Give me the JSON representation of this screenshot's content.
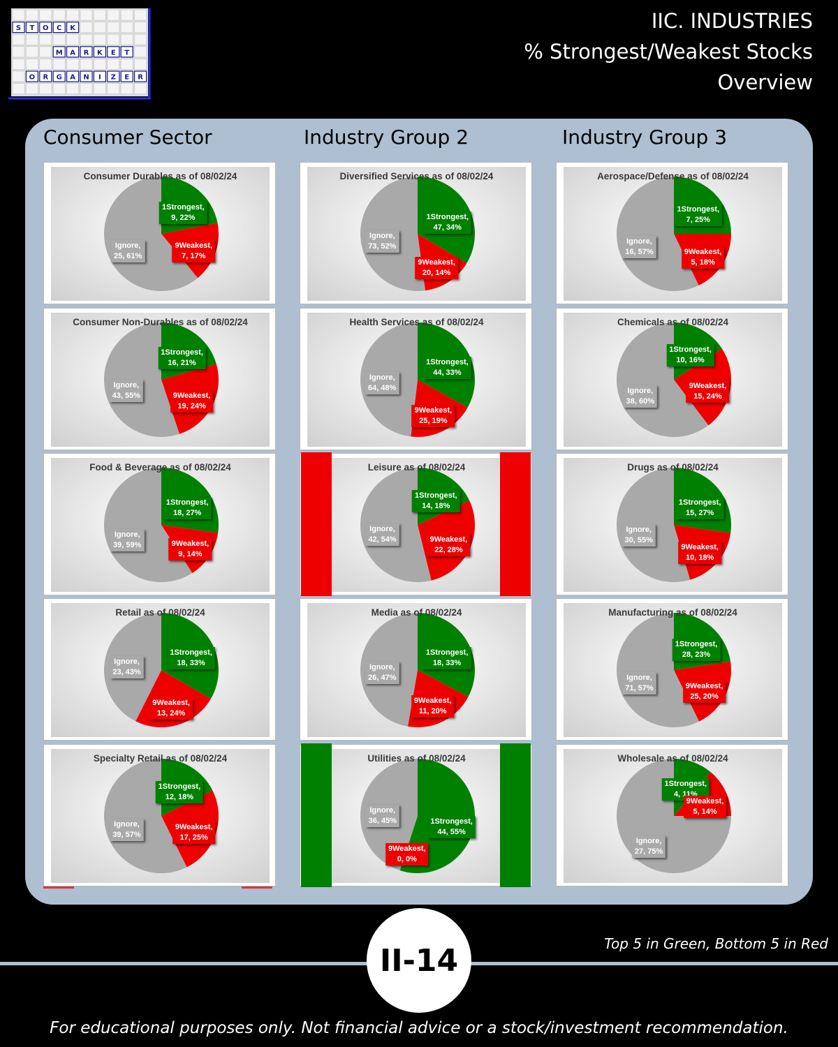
{
  "header": {
    "title_lines": [
      "IIC. INDUSTRIES",
      "% Strongest/Weakest Stocks",
      "Overview"
    ]
  },
  "logo": {
    "words": [
      "STOCK",
      "MARKET",
      "ORGANIZER"
    ]
  },
  "columns": [
    "Consumer Sector",
    "Industry Group 2",
    "Industry Group 3"
  ],
  "footer": {
    "note": "Top 5 in Green, Bottom 5 in Red",
    "page_number": "II-14",
    "disclaimer": "For educational purposes only. Not financial advice or a stock/investment recommendation."
  },
  "colors": {
    "strongest": "#008000",
    "weakest": "#ee0000",
    "ignore": "#a9a9a9",
    "panel": "#aebfd2"
  },
  "chart_data": [
    {
      "type": "pie",
      "title": "Consumer Durables as of 08/02/24",
      "highlight": "none",
      "slices": [
        {
          "name": "1Strongest",
          "value": 9,
          "pct": "22%"
        },
        {
          "name": "9Weakest",
          "value": 7,
          "pct": "17%"
        },
        {
          "name": "Ignore",
          "value": 25,
          "pct": "61%"
        }
      ]
    },
    {
      "type": "pie",
      "title": "Diversified Services as of 08/02/24",
      "highlight": "none",
      "slices": [
        {
          "name": "1Strongest",
          "value": 47,
          "pct": "34%"
        },
        {
          "name": "9Weakest",
          "value": 20,
          "pct": "14%"
        },
        {
          "name": "Ignore",
          "value": 73,
          "pct": "52%"
        }
      ]
    },
    {
      "type": "pie",
      "title": "Aerospace/Defense as of 08/02/24",
      "highlight": "none",
      "slices": [
        {
          "name": "1Strongest",
          "value": 7,
          "pct": "25%"
        },
        {
          "name": "9Weakest",
          "value": 5,
          "pct": "18%"
        },
        {
          "name": "Ignore",
          "value": 16,
          "pct": "57%"
        }
      ]
    },
    {
      "type": "pie",
      "title": "Consumer  Non-Durables  as of 08/02/24",
      "highlight": "none",
      "slices": [
        {
          "name": "1Strongest",
          "value": 16,
          "pct": "21%"
        },
        {
          "name": "9Weakest",
          "value": 19,
          "pct": "24%"
        },
        {
          "name": "Ignore",
          "value": 43,
          "pct": "55%"
        }
      ]
    },
    {
      "type": "pie",
      "title": "Health Services as of 08/02/24",
      "highlight": "none",
      "slices": [
        {
          "name": "1Strongest",
          "value": 44,
          "pct": "33%"
        },
        {
          "name": "9Weakest",
          "value": 25,
          "pct": "19%"
        },
        {
          "name": "Ignore",
          "value": 64,
          "pct": "48%"
        }
      ]
    },
    {
      "type": "pie",
      "title": "Chemicals as of 08/02/24",
      "highlight": "none",
      "slices": [
        {
          "name": "1Strongest",
          "value": 10,
          "pct": "16%"
        },
        {
          "name": "9Weakest",
          "value": 15,
          "pct": "24%"
        },
        {
          "name": "Ignore",
          "value": 38,
          "pct": "60%"
        }
      ]
    },
    {
      "type": "pie",
      "title": "Food & Beverage as of 08/02/24",
      "highlight": "none",
      "slices": [
        {
          "name": "1Strongest",
          "value": 18,
          "pct": "27%"
        },
        {
          "name": "9Weakest",
          "value": 9,
          "pct": "14%"
        },
        {
          "name": "Ignore",
          "value": 39,
          "pct": "59%"
        }
      ]
    },
    {
      "type": "pie",
      "title": "Leisure as of 08/02/24",
      "highlight": "red",
      "slices": [
        {
          "name": "1Strongest",
          "value": 14,
          "pct": "18%"
        },
        {
          "name": "9Weakest",
          "value": 22,
          "pct": "28%"
        },
        {
          "name": "Ignore",
          "value": 42,
          "pct": "54%"
        }
      ]
    },
    {
      "type": "pie",
      "title": "Drugs as of 08/02/24",
      "highlight": "none",
      "slices": [
        {
          "name": "1Strongest",
          "value": 15,
          "pct": "27%"
        },
        {
          "name": "9Weakest",
          "value": 10,
          "pct": "18%"
        },
        {
          "name": "Ignore",
          "value": 30,
          "pct": "55%"
        }
      ]
    },
    {
      "type": "pie",
      "title": "Retail as of 08/02/24",
      "highlight": "none",
      "slices": [
        {
          "name": "1Strongest",
          "value": 18,
          "pct": "33%"
        },
        {
          "name": "9Weakest",
          "value": 13,
          "pct": "24%"
        },
        {
          "name": "Ignore",
          "value": 23,
          "pct": "43%"
        }
      ]
    },
    {
      "type": "pie",
      "title": "Media as of 08/02/24",
      "highlight": "none",
      "slices": [
        {
          "name": "1Strongest",
          "value": 18,
          "pct": "33%"
        },
        {
          "name": "9Weakest",
          "value": 11,
          "pct": "20%"
        },
        {
          "name": "Ignore",
          "value": 26,
          "pct": "47%"
        }
      ]
    },
    {
      "type": "pie",
      "title": "Manufacturing as of 08/02/24",
      "highlight": "none",
      "slices": [
        {
          "name": "1Strongest",
          "value": 28,
          "pct": "23%"
        },
        {
          "name": "9Weakest",
          "value": 25,
          "pct": "20%"
        },
        {
          "name": "Ignore",
          "value": 71,
          "pct": "57%"
        }
      ]
    },
    {
      "type": "pie",
      "title": "Specialty Retail as of 08/02/24",
      "highlight": "none",
      "slices": [
        {
          "name": "1Strongest",
          "value": 12,
          "pct": "18%"
        },
        {
          "name": "9Weakest",
          "value": 17,
          "pct": "25%"
        },
        {
          "name": "Ignore",
          "value": 39,
          "pct": "57%"
        }
      ]
    },
    {
      "type": "pie",
      "title": "Utilities as of 08/02/24",
      "highlight": "green",
      "slices": [
        {
          "name": "1Strongest",
          "value": 44,
          "pct": "55%"
        },
        {
          "name": "9Weakest",
          "value": 0,
          "pct": "0%"
        },
        {
          "name": "Ignore",
          "value": 36,
          "pct": "45%"
        }
      ]
    },
    {
      "type": "pie",
      "title": "Wholesale as of 08/02/24",
      "highlight": "none",
      "slices": [
        {
          "name": "1Strongest",
          "value": 4,
          "pct": "11%"
        },
        {
          "name": "9Weakest",
          "value": 5,
          "pct": "14%"
        },
        {
          "name": "Ignore",
          "value": 27,
          "pct": "75%"
        }
      ]
    }
  ]
}
